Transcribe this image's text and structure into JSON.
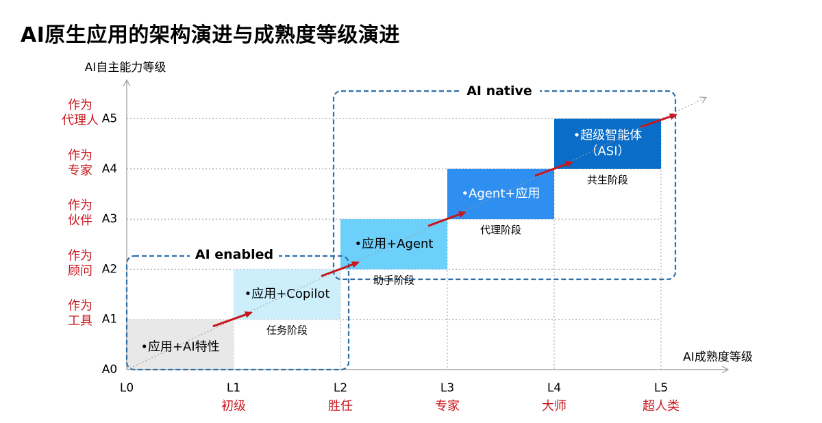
{
  "title": "AI原生应用的架构演进与成熟度等级演进",
  "axes": {
    "y_title": "AI自主能力等级",
    "x_title": "AI成熟度等级",
    "y_levels": [
      {
        "code": "A0",
        "role": ""
      },
      {
        "code": "A1",
        "role": "作为\n工具"
      },
      {
        "code": "A2",
        "role": "作为\n顾问"
      },
      {
        "code": "A3",
        "role": "作为\n伙伴"
      },
      {
        "code": "A4",
        "role": "作为\n专家"
      },
      {
        "code": "A5",
        "role": "作为\n代理人"
      }
    ],
    "x_levels": [
      {
        "code": "L0",
        "role": ""
      },
      {
        "code": "L1",
        "role": "初级"
      },
      {
        "code": "L2",
        "role": "胜任"
      },
      {
        "code": "L3",
        "role": "专家"
      },
      {
        "code": "L4",
        "role": "大师"
      },
      {
        "code": "L5",
        "role": "超人类"
      }
    ]
  },
  "stages": [
    {
      "label": "•应用+AI特性",
      "stage": "",
      "color": "#e8e8e8"
    },
    {
      "label": "•应用+Copilot",
      "stage": "任务阶段",
      "color": "#cdeffc"
    },
    {
      "label": "•应用+Agent",
      "stage": "助手阶段",
      "color": "#6dd0fa"
    },
    {
      "label": "•Agent+应用",
      "stage": "代理阶段",
      "color": "#2f8ff0"
    },
    {
      "label": "•超级智能体\n（ASI）",
      "stage": "共生阶段",
      "color": "#0a6ec8"
    }
  ],
  "groups": [
    {
      "label": "AI enabled"
    },
    {
      "label": "AI native"
    }
  ],
  "colors": {
    "accent_red": "#c8161d",
    "group_border": "#2e6fa8"
  }
}
